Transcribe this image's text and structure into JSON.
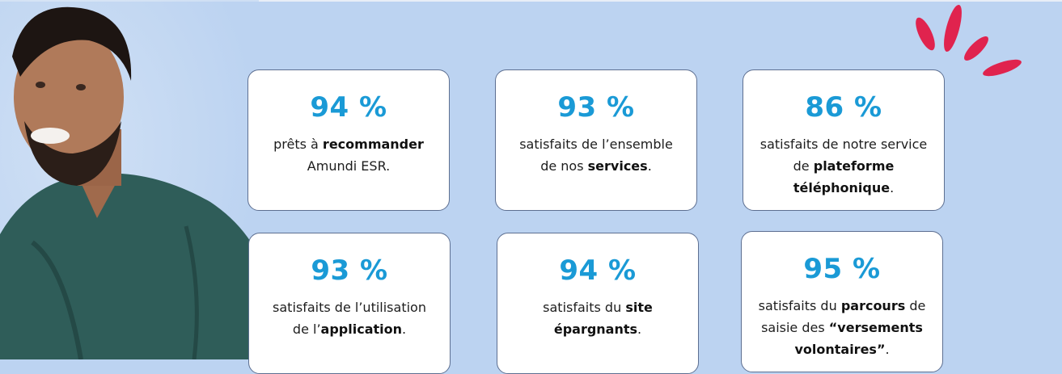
{
  "colors": {
    "background": "#bcd3f1",
    "accent": "#1a9ad6",
    "splash": "#e0234e",
    "card_border": "#5d6f91"
  },
  "cards": [
    {
      "value": "94 %",
      "pre": "prêts à ",
      "bold": "recommander",
      "post": "",
      "line2_pre": "Amundi ESR.",
      "line2_bold": "",
      "line2_post": "",
      "line3_bold": "",
      "line3_post": ""
    },
    {
      "value": "93 %",
      "pre": "satisfaits de l’ensemble",
      "bold": "",
      "post": "",
      "line2_pre": "de nos ",
      "line2_bold": "services",
      "line2_post": ".",
      "line3_bold": "",
      "line3_post": ""
    },
    {
      "value": "86 %",
      "pre": "satisfaits de notre service",
      "bold": "",
      "post": "",
      "line2_pre": "de ",
      "line2_bold": "plateforme",
      "line2_post": "",
      "line3_bold": "téléphonique",
      "line3_post": "."
    },
    {
      "value": "93 %",
      "pre": "satisfaits de l’utilisation",
      "bold": "",
      "post": "",
      "line2_pre": "de l’",
      "line2_bold": "application",
      "line2_post": ".",
      "line3_bold": "",
      "line3_post": ""
    },
    {
      "value": "94 %",
      "pre": "satisfaits du ",
      "bold": "site",
      "post": "",
      "line2_pre": "",
      "line2_bold": "épargnants",
      "line2_post": ".",
      "line3_bold": "",
      "line3_post": ""
    },
    {
      "value": "95 %",
      "pre": "satisfaits du ",
      "bold": "parcours",
      "post": " de",
      "line2_pre": "saisie des ",
      "line2_bold": "“versements",
      "line2_post": "",
      "line3_bold": "volontaires”",
      "line3_post": "."
    }
  ]
}
